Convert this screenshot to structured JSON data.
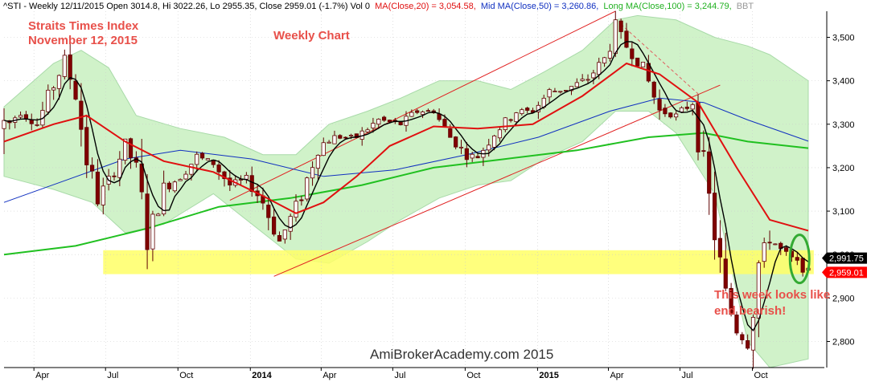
{
  "header": {
    "symbol_info": "^STI - Weekly 12/11/2015 Open 3014.8, Hi 3022.26, Lo 2955.35, Close 2959.01 (-1.7%) Vol 0",
    "ma20": "MA(Close,20) = 3,054.58,",
    "ma50": "Mid MA(Close,50) = 3,260.86,",
    "ma100": "Long MA(Close,100) = 3,244.79,",
    "bbt": "BBT"
  },
  "annotations": {
    "title_line1": "Straits Times Index",
    "title_line2": "November 12, 2015",
    "weekly_chart": "Weekly Chart",
    "comment_line1": "This week looks like",
    "comment_line2": "end bearish!",
    "watermark": "AmiBrokerAcademy.com 2015"
  },
  "chart_data": {
    "type": "candlestick",
    "ylim": [
      2740,
      3560
    ],
    "y_ticks": [
      2800,
      2900,
      3000,
      3100,
      3200,
      3300,
      3400,
      3500
    ],
    "y_tick_labels": [
      "2,800",
      "2,900",
      "3,000",
      "3,100",
      "3,200",
      "3,300",
      "3,400",
      "3,500"
    ],
    "x_range": [
      "2013-02-22",
      "2015-12-11"
    ],
    "x_ticks": [
      {
        "date": "2013-04-01",
        "label": "Apr"
      },
      {
        "date": "2013-07-01",
        "label": "Jul"
      },
      {
        "date": "2013-10-01",
        "label": "Oct"
      },
      {
        "date": "2014-01-01",
        "label": "2014"
      },
      {
        "date": "2014-04-01",
        "label": "Apr"
      },
      {
        "date": "2014-07-01",
        "label": "Jul"
      },
      {
        "date": "2014-10-01",
        "label": "Oct"
      },
      {
        "date": "2015-01-01",
        "label": "2015"
      },
      {
        "date": "2015-04-01",
        "label": "Apr"
      },
      {
        "date": "2015-07-01",
        "label": "Jul"
      },
      {
        "date": "2015-10-01",
        "label": "Oct"
      }
    ],
    "right_axis_badges": [
      {
        "value": 2991.75,
        "label": "2,991.75",
        "color": "#000000"
      },
      {
        "value": 2959.01,
        "label": "2,959.01",
        "color": "#ff0000"
      }
    ],
    "candle_anchors": [
      [
        "2013-02-22",
        3290
      ],
      [
        "2013-03-15",
        3330
      ],
      [
        "2013-04-05",
        3300
      ],
      [
        "2013-04-26",
        3390
      ],
      [
        "2013-05-10",
        3445
      ],
      [
        "2013-05-24",
        3370
      ],
      [
        "2013-06-07",
        3220
      ],
      [
        "2013-06-21",
        3130
      ],
      [
        "2013-07-05",
        3170
      ],
      [
        "2013-07-26",
        3250
      ],
      [
        "2013-08-09",
        3200
      ],
      [
        "2013-08-23",
        3040
      ],
      [
        "2013-09-13",
        3150
      ],
      [
        "2013-10-04",
        3180
      ],
      [
        "2013-10-25",
        3225
      ],
      [
        "2013-11-15",
        3210
      ],
      [
        "2013-12-06",
        3160
      ],
      [
        "2013-12-27",
        3175
      ],
      [
        "2014-01-17",
        3120
      ],
      [
        "2014-02-07",
        3030
      ],
      [
        "2014-03-07",
        3135
      ],
      [
        "2014-03-28",
        3250
      ],
      [
        "2014-04-18",
        3270
      ],
      [
        "2014-05-16",
        3270
      ],
      [
        "2014-06-13",
        3310
      ],
      [
        "2014-07-11",
        3300
      ],
      [
        "2014-08-01",
        3330
      ],
      [
        "2014-08-22",
        3330
      ],
      [
        "2014-09-12",
        3270
      ],
      [
        "2014-10-03",
        3230
      ],
      [
        "2014-10-17",
        3225
      ],
      [
        "2014-11-07",
        3280
      ],
      [
        "2014-12-05",
        3330
      ],
      [
        "2014-12-26",
        3330
      ],
      [
        "2015-01-16",
        3375
      ],
      [
        "2015-02-06",
        3380
      ],
      [
        "2015-03-06",
        3405
      ],
      [
        "2015-03-27",
        3450
      ],
      [
        "2015-04-10",
        3520
      ],
      [
        "2015-04-24",
        3480
      ],
      [
        "2015-05-15",
        3430
      ],
      [
        "2015-06-05",
        3330
      ],
      [
        "2015-06-26",
        3320
      ],
      [
        "2015-07-17",
        3350
      ],
      [
        "2015-07-31",
        3200
      ],
      [
        "2015-08-14",
        3050
      ],
      [
        "2015-08-28",
        2900
      ],
      [
        "2015-09-11",
        2830
      ],
      [
        "2015-09-25",
        2795
      ],
      [
        "2015-10-09",
        2980
      ],
      [
        "2015-10-23",
        3040
      ],
      [
        "2015-11-06",
        3010
      ],
      [
        "2015-12-11",
        2959
      ]
    ],
    "ma20_curve": [
      [
        "2013-02-22",
        3260
      ],
      [
        "2013-04-26",
        3300
      ],
      [
        "2013-06-07",
        3320
      ],
      [
        "2013-07-26",
        3260
      ],
      [
        "2013-09-13",
        3215
      ],
      [
        "2013-11-15",
        3190
      ],
      [
        "2014-01-17",
        3135
      ],
      [
        "2014-02-28",
        3095
      ],
      [
        "2014-04-04",
        3120
      ],
      [
        "2014-05-16",
        3180
      ],
      [
        "2014-06-27",
        3250
      ],
      [
        "2014-08-22",
        3295
      ],
      [
        "2014-10-17",
        3290
      ],
      [
        "2014-12-26",
        3300
      ],
      [
        "2015-02-27",
        3365
      ],
      [
        "2015-04-24",
        3440
      ],
      [
        "2015-06-05",
        3415
      ],
      [
        "2015-07-24",
        3350
      ],
      [
        "2015-09-11",
        3200
      ],
      [
        "2015-10-23",
        3080
      ],
      [
        "2015-12-11",
        3055
      ]
    ],
    "ma50_curve": [
      [
        "2013-02-22",
        3120
      ],
      [
        "2013-05-10",
        3170
      ],
      [
        "2013-07-26",
        3220
      ],
      [
        "2013-10-04",
        3240
      ],
      [
        "2014-01-03",
        3220
      ],
      [
        "2014-04-04",
        3180
      ],
      [
        "2014-07-04",
        3195
      ],
      [
        "2014-10-03",
        3230
      ],
      [
        "2015-01-02",
        3270
      ],
      [
        "2015-04-03",
        3330
      ],
      [
        "2015-06-05",
        3360
      ],
      [
        "2015-07-31",
        3350
      ],
      [
        "2015-09-25",
        3310
      ],
      [
        "2015-12-11",
        3261
      ]
    ],
    "ma100_curve": [
      [
        "2013-02-22",
        3000
      ],
      [
        "2013-05-24",
        3020
      ],
      [
        "2013-08-23",
        3060
      ],
      [
        "2013-11-22",
        3110
      ],
      [
        "2014-02-21",
        3130
      ],
      [
        "2014-05-23",
        3160
      ],
      [
        "2014-08-22",
        3200
      ],
      [
        "2014-11-21",
        3220
      ],
      [
        "2015-02-20",
        3240
      ],
      [
        "2015-05-22",
        3270
      ],
      [
        "2015-07-31",
        3280
      ],
      [
        "2015-09-25",
        3260
      ],
      [
        "2015-12-11",
        3245
      ]
    ],
    "bband_upper": [
      [
        "2013-02-22",
        3340
      ],
      [
        "2013-04-26",
        3440
      ],
      [
        "2013-05-31",
        3470
      ],
      [
        "2013-07-05",
        3430
      ],
      [
        "2013-08-09",
        3320
      ],
      [
        "2013-10-04",
        3290
      ],
      [
        "2013-11-29",
        3270
      ],
      [
        "2014-01-17",
        3230
      ],
      [
        "2014-02-28",
        3230
      ],
      [
        "2014-04-11",
        3300
      ],
      [
        "2014-05-30",
        3330
      ],
      [
        "2014-07-11",
        3360
      ],
      [
        "2014-08-29",
        3400
      ],
      [
        "2014-10-17",
        3400
      ],
      [
        "2014-11-28",
        3380
      ],
      [
        "2015-01-09",
        3420
      ],
      [
        "2015-02-27",
        3470
      ],
      [
        "2015-04-10",
        3540
      ],
      [
        "2015-05-08",
        3550
      ],
      [
        "2015-06-26",
        3540
      ],
      [
        "2015-08-14",
        3500
      ],
      [
        "2015-09-25",
        3480
      ],
      [
        "2015-10-23",
        3460
      ],
      [
        "2015-12-11",
        3400
      ]
    ],
    "bband_lower": [
      [
        "2013-02-22",
        3180
      ],
      [
        "2013-04-26",
        3150
      ],
      [
        "2013-06-14",
        3120
      ],
      [
        "2013-07-26",
        3050
      ],
      [
        "2013-09-13",
        3070
      ],
      [
        "2013-11-15",
        3140
      ],
      [
        "2014-01-17",
        3050
      ],
      [
        "2014-02-28",
        2990
      ],
      [
        "2014-04-11",
        2980
      ],
      [
        "2014-05-30",
        3030
      ],
      [
        "2014-07-11",
        3080
      ],
      [
        "2014-08-29",
        3130
      ],
      [
        "2014-10-17",
        3160
      ],
      [
        "2014-11-28",
        3170
      ],
      [
        "2015-01-09",
        3220
      ],
      [
        "2015-02-27",
        3260
      ],
      [
        "2015-04-10",
        3330
      ],
      [
        "2015-05-22",
        3330
      ],
      [
        "2015-06-26",
        3280
      ],
      [
        "2015-08-14",
        3140
      ],
      [
        "2015-09-25",
        2800
      ],
      [
        "2015-10-23",
        2740
      ],
      [
        "2015-12-11",
        2760
      ]
    ],
    "channel_lines": [
      {
        "from": [
          "2013-12-06",
          3125
        ],
        "to": [
          "2015-04-10",
          3560
        ],
        "color": "#e02020",
        "dash": false
      },
      {
        "from": [
          "2014-01-31",
          2950
        ],
        "to": [
          "2015-08-21",
          3390
        ],
        "color": "#e02020",
        "dash": false
      },
      {
        "from": [
          "2015-04-17",
          3530
        ],
        "to": [
          "2015-07-24",
          3370
        ],
        "color": "#e06060",
        "dash": true
      }
    ],
    "support_zone": {
      "from": "2013-06-28",
      "to": "2015-12-18",
      "low": 2955,
      "high": 3010,
      "color": "#ffff66"
    },
    "highlight_ellipse": {
      "center": [
        "2015-11-30",
        2990
      ],
      "color": "#33aa33"
    }
  },
  "colors": {
    "ma20": "#e01010",
    "ma50": "#1030c0",
    "ma100": "#20c020",
    "short_ma": "#000000",
    "band_fill": "#c8f0c0",
    "band_stroke": "#9ad49a",
    "up_candle": "#ffffff",
    "down_candle": "#800000",
    "candle_outline": "#600000",
    "annotation": "#e8504a"
  }
}
